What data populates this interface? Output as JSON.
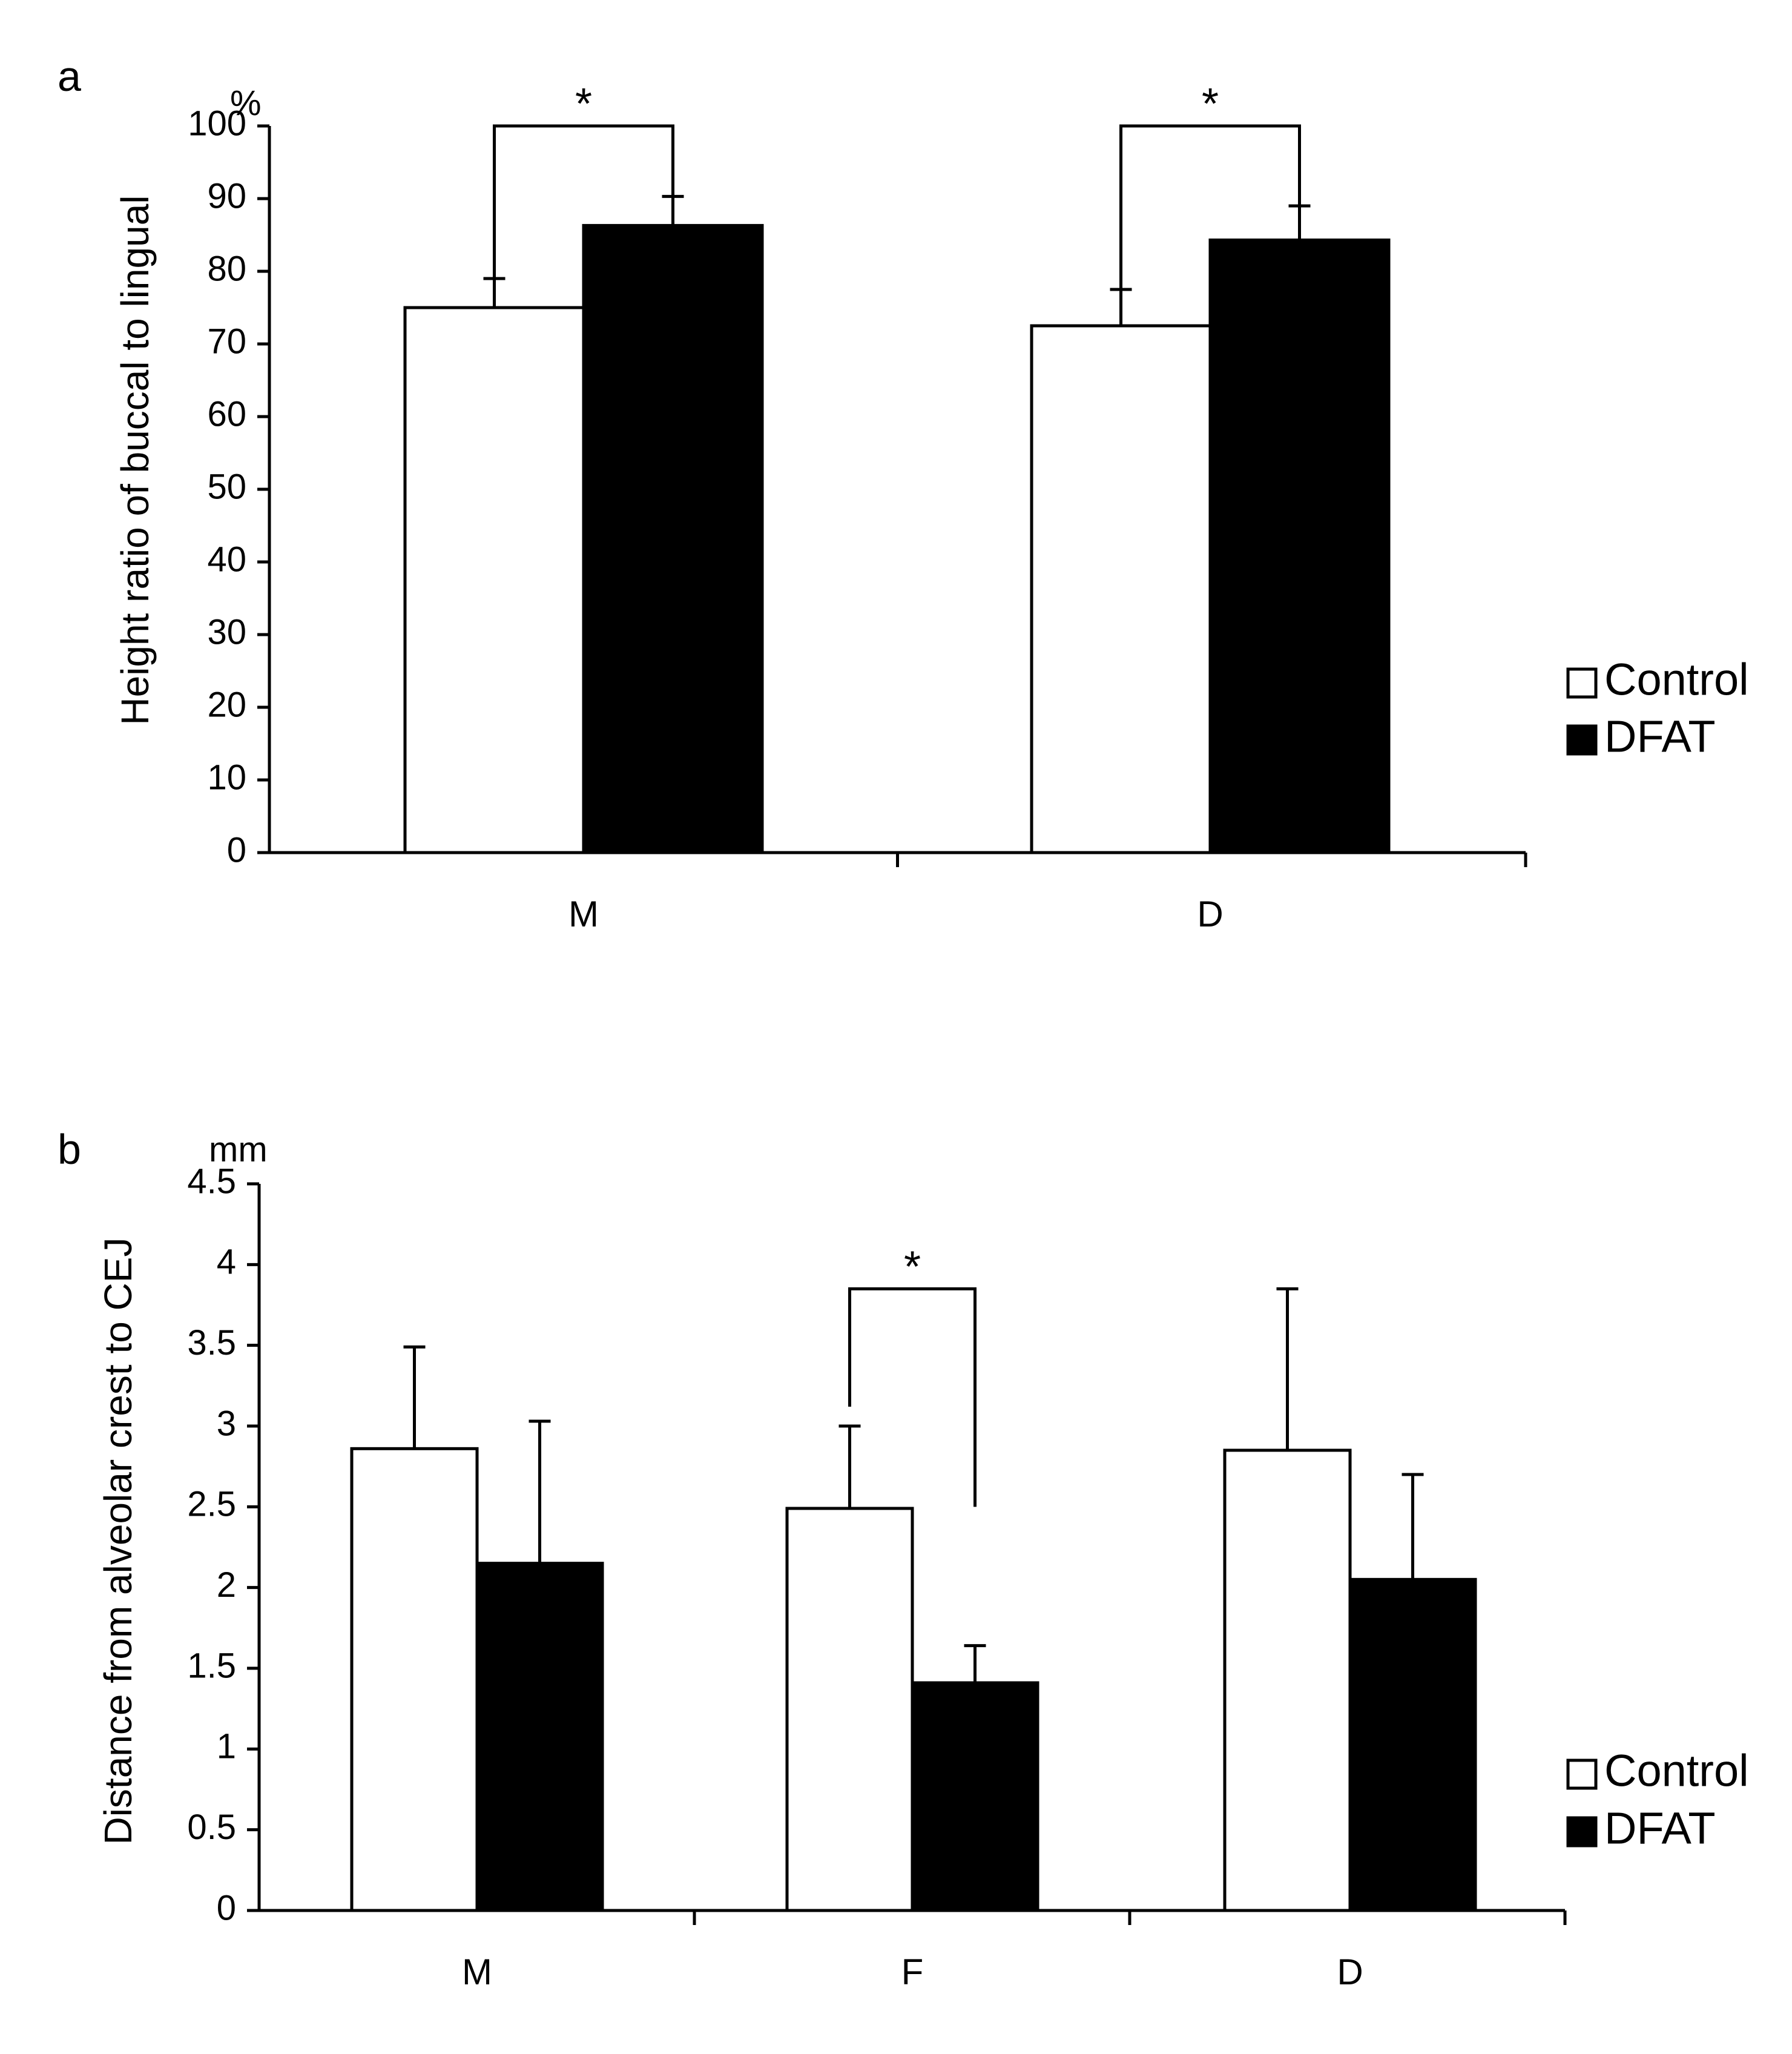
{
  "chart_data": [
    {
      "panel_label": "a",
      "type": "bar",
      "categories": [
        "M",
        "D"
      ],
      "series": [
        {
          "name": "Control",
          "values": [
            75,
            72.5
          ],
          "errors": [
            4,
            5
          ],
          "color": "#ffffff"
        },
        {
          "name": "DFAT",
          "values": [
            86.3,
            84.3
          ],
          "errors": [
            4,
            4.7
          ],
          "color": "#000000"
        }
      ],
      "ylim": [
        0,
        100
      ],
      "yticks": [
        0,
        10,
        20,
        30,
        40,
        50,
        60,
        70,
        80,
        90,
        100
      ],
      "ytick_labels": [
        "0",
        "10",
        "20",
        "30",
        "40",
        "50",
        "60",
        "70",
        "80",
        "90",
        "100"
      ],
      "y_unit": "%",
      "ylabel": "Height ratio of buccal to lingual",
      "xlabel": "",
      "significance": [
        {
          "category_index": 0,
          "label": "*",
          "left_y": 75,
          "right_y": 89,
          "top_y": 100
        },
        {
          "category_index": 1,
          "label": "*",
          "left_y": 73,
          "right_y": 87,
          "top_y": 100
        }
      ],
      "legend": [
        "Control",
        "DFAT"
      ],
      "legend_position": "right"
    },
    {
      "panel_label": "b",
      "type": "bar",
      "categories": [
        "M",
        "F",
        "D"
      ],
      "series": [
        {
          "name": "Control",
          "values": [
            2.86,
            2.49,
            2.85
          ],
          "errors": [
            0.63,
            0.51,
            1.0
          ],
          "color": "#ffffff"
        },
        {
          "name": "DFAT",
          "values": [
            2.15,
            1.41,
            2.05
          ],
          "errors": [
            0.88,
            0.23,
            0.65
          ],
          "color": "#000000"
        }
      ],
      "ylim": [
        0,
        4.5
      ],
      "yticks": [
        0,
        0.5,
        1,
        1.5,
        2,
        2.5,
        3,
        3.5,
        4,
        4.5
      ],
      "ytick_labels": [
        "0",
        "0.5",
        "1",
        "1.5",
        "2",
        "2.5",
        "3",
        "3.5",
        "4",
        "4.5"
      ],
      "y_unit": "mm",
      "ylabel": "Distance from alveolar crest to CEJ",
      "xlabel": "",
      "significance": [
        {
          "category_index": 1,
          "label": "*",
          "left_y": 3.12,
          "right_y": 2.5,
          "top_y": 3.85
        }
      ],
      "legend": [
        "Control",
        "DFAT"
      ],
      "legend_position": "right"
    }
  ]
}
